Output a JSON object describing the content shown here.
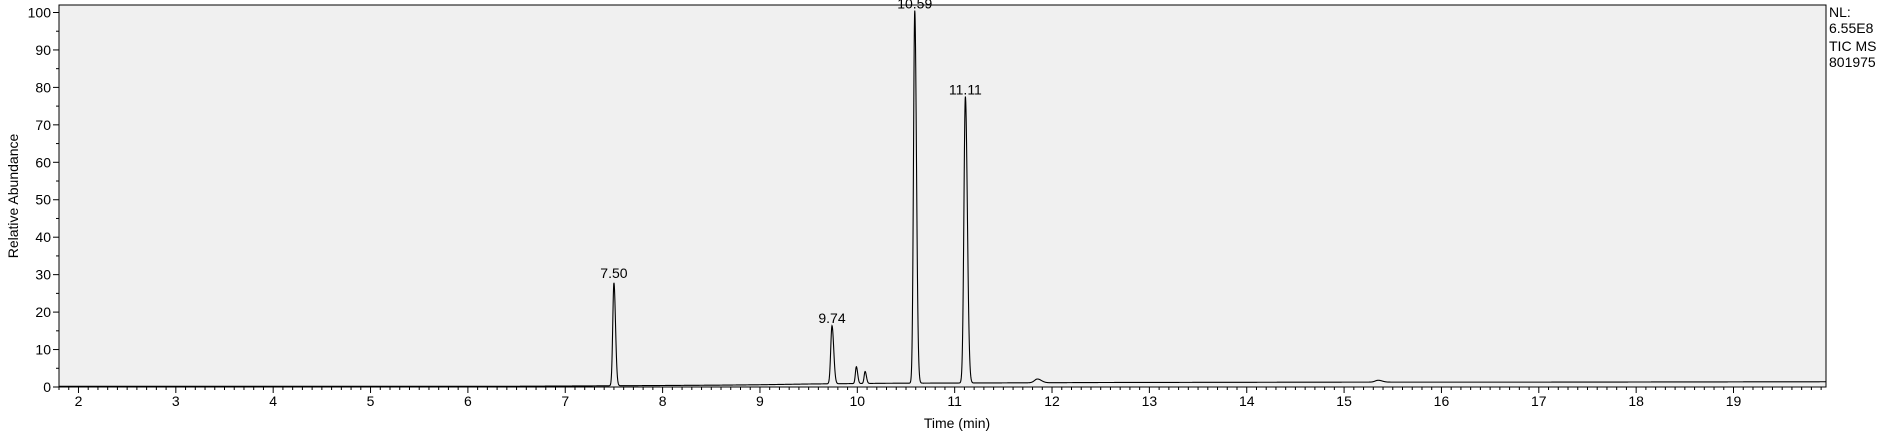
{
  "chart_data": {
    "type": "line",
    "xlabel": "Time (min)",
    "ylabel": "Relative Abundance",
    "xlim": [
      1.8,
      19.95
    ],
    "ylim": [
      0,
      102
    ],
    "x_ticks": [
      2,
      3,
      4,
      5,
      6,
      7,
      8,
      9,
      10,
      11,
      12,
      13,
      14,
      15,
      16,
      17,
      18,
      19
    ],
    "y_ticks": [
      0,
      10,
      20,
      30,
      40,
      50,
      60,
      70,
      80,
      90,
      100
    ],
    "grid": false,
    "background": "#f0f0f0",
    "line_color": "#000000",
    "baseline": [
      [
        1.8,
        0.2
      ],
      [
        6.5,
        0.2
      ],
      [
        7.3,
        0.3
      ],
      [
        8.0,
        0.4
      ],
      [
        8.6,
        0.5
      ],
      [
        9.0,
        0.6
      ],
      [
        9.5,
        0.8
      ],
      [
        10.3,
        1.0
      ],
      [
        11.5,
        1.1
      ],
      [
        12.5,
        1.2
      ],
      [
        15.0,
        1.3
      ],
      [
        17.0,
        1.3
      ],
      [
        19.95,
        1.4
      ]
    ],
    "peaks": [
      {
        "rt": 7.5,
        "height": 27.5,
        "width": 0.012
      },
      {
        "rt": 9.74,
        "height": 15.5,
        "width": 0.013
      },
      {
        "rt": 9.99,
        "height": 4.5,
        "width": 0.01
      },
      {
        "rt": 10.08,
        "height": 3.2,
        "width": 0.01
      },
      {
        "rt": 10.59,
        "height": 99.5,
        "width": 0.013
      },
      {
        "rt": 11.11,
        "height": 76.5,
        "width": 0.015
      },
      {
        "rt": 11.85,
        "height": 1.0,
        "width": 0.03
      },
      {
        "rt": 15.35,
        "height": 0.5,
        "width": 0.03
      }
    ],
    "peak_labels": [
      {
        "x": 7.5,
        "y": 27.5,
        "text": "7.50"
      },
      {
        "x": 9.74,
        "y": 15.5,
        "text": "9.74"
      },
      {
        "x": 10.59,
        "y": 99.5,
        "text": "10.59"
      },
      {
        "x": 11.11,
        "y": 76.5,
        "text": "11.11"
      }
    ]
  },
  "annotation": {
    "lines": [
      "NL:",
      "6.55E8",
      "TIC  MS",
      "801975"
    ]
  }
}
